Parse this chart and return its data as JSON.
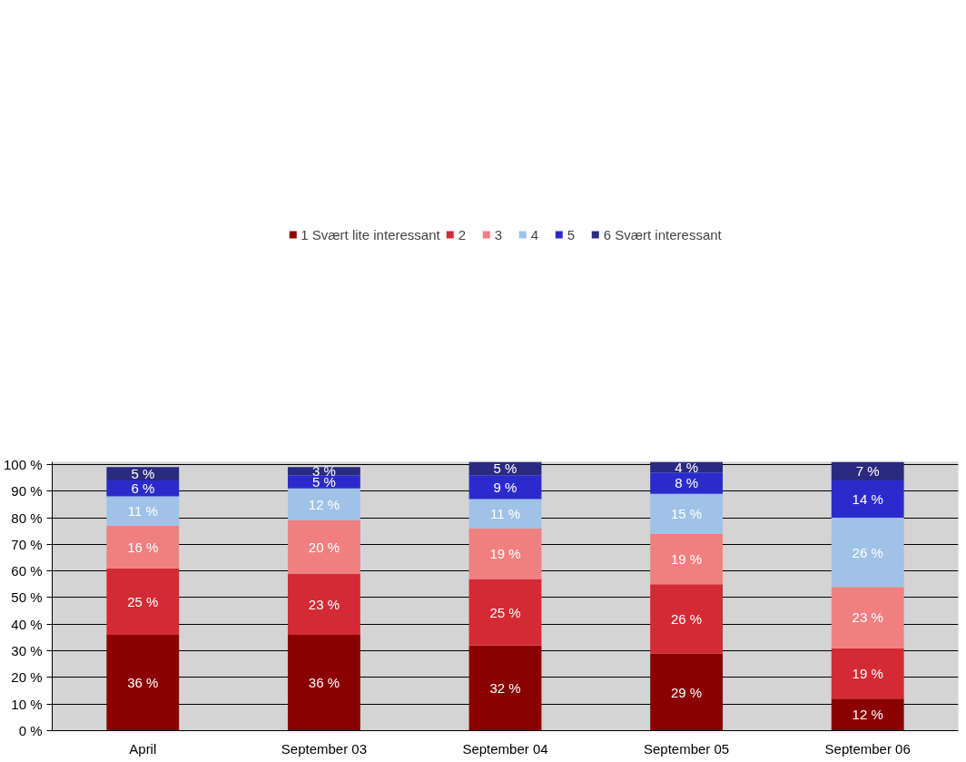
{
  "chart_data": {
    "type": "bar",
    "stacked": true,
    "categories": [
      "April",
      "September 03",
      "September 04",
      "September 05",
      "September 06"
    ],
    "series": [
      {
        "name": "1 Svært lite interessant",
        "color": "#8b0000",
        "values": [
          36,
          36,
          32,
          29,
          12
        ],
        "value_labels": [
          "36 %",
          "36 %",
          "32 %",
          "29 %",
          "12 %"
        ]
      },
      {
        "name": "2",
        "color": "#d42a35",
        "values": [
          25,
          23,
          25,
          26,
          19
        ],
        "value_labels": [
          "25 %",
          "23 %",
          "25 %",
          "26 %",
          "19 %"
        ]
      },
      {
        "name": "3",
        "color": "#f08080",
        "values": [
          16,
          20,
          19,
          19,
          23
        ],
        "value_labels": [
          "16 %",
          "20 %",
          "19 %",
          "19 %",
          "23 %"
        ]
      },
      {
        "name": "4",
        "color": "#9fc2e6",
        "values": [
          11,
          12,
          11,
          15,
          26
        ],
        "value_labels": [
          "11 %",
          "12 %",
          "11 %",
          "15 %",
          "26 %"
        ]
      },
      {
        "name": "5",
        "color": "#2b2bcc",
        "values": [
          6,
          5,
          9,
          8,
          14
        ],
        "value_labels": [
          "6 %",
          "5 %",
          "9 %",
          "8 %",
          "14 %"
        ]
      },
      {
        "name": "6 Svært interessant",
        "color": "#2a2a80",
        "values": [
          5,
          3,
          5,
          4,
          7
        ],
        "value_labels": [
          "5 %",
          "3 %",
          "5 %",
          "4 %",
          "7 %"
        ]
      }
    ],
    "ylim": [
      0,
      101
    ],
    "yticks": [
      {
        "value": 0,
        "label": "0 %"
      },
      {
        "value": 10,
        "label": "10 %"
      },
      {
        "value": 20,
        "label": "20 %"
      },
      {
        "value": 30,
        "label": "30 %"
      },
      {
        "value": 40,
        "label": "40 %"
      },
      {
        "value": 50,
        "label": "50 %"
      },
      {
        "value": 60,
        "label": "60 %"
      },
      {
        "value": 70,
        "label": "70 %"
      },
      {
        "value": 80,
        "label": "80 %"
      },
      {
        "value": 90,
        "label": "90 %"
      },
      {
        "value": 100,
        "label": "100 %"
      }
    ],
    "grid": "y",
    "legend": "top"
  }
}
